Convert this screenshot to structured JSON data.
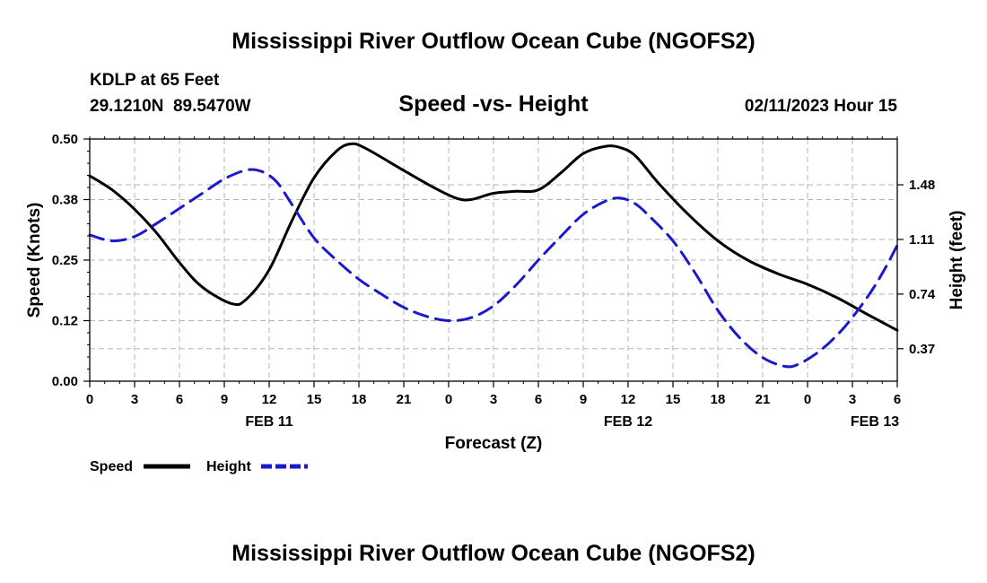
{
  "chart_data": {
    "type": "line",
    "title": "Mississippi River Outflow Ocean Cube (NGOFS2)",
    "footer_title": "Mississippi River Outflow Ocean Cube (NGOFS2)",
    "subtitle": "Speed -vs- Height",
    "station": "KDLP at 65 Feet",
    "location": "29.1210N  89.5470W",
    "timestamp": "02/11/2023 Hour 15",
    "xlabel": "Forecast (Z)",
    "ylabel_left": "Speed (Knots)",
    "ylabel_right": "Height (feet)",
    "x_range_hours": [
      0,
      54
    ],
    "y_left_range": [
      0,
      0.5
    ],
    "y_right_range": [
      0.15,
      1.79
    ],
    "x_ticks": [
      {
        "hour": 0,
        "label": "0"
      },
      {
        "hour": 3,
        "label": "3"
      },
      {
        "hour": 6,
        "label": "6"
      },
      {
        "hour": 9,
        "label": "9"
      },
      {
        "hour": 12,
        "label": "12"
      },
      {
        "hour": 15,
        "label": "15"
      },
      {
        "hour": 18,
        "label": "18"
      },
      {
        "hour": 21,
        "label": "21"
      },
      {
        "hour": 24,
        "label": "0"
      },
      {
        "hour": 27,
        "label": "3"
      },
      {
        "hour": 30,
        "label": "6"
      },
      {
        "hour": 33,
        "label": "9"
      },
      {
        "hour": 36,
        "label": "12"
      },
      {
        "hour": 39,
        "label": "15"
      },
      {
        "hour": 42,
        "label": "18"
      },
      {
        "hour": 45,
        "label": "21"
      },
      {
        "hour": 48,
        "label": "0"
      },
      {
        "hour": 51,
        "label": "3"
      },
      {
        "hour": 54,
        "label": "6"
      }
    ],
    "date_labels": [
      {
        "hour": 12,
        "label": "FEB 11"
      },
      {
        "hour": 36,
        "label": "FEB 12"
      },
      {
        "hour": 52.5,
        "label": "FEB 13"
      }
    ],
    "y_left_ticks": [
      {
        "value": 0.0,
        "label": "0.00"
      },
      {
        "value": 0.125,
        "label": "0.12"
      },
      {
        "value": 0.25,
        "label": "0.25"
      },
      {
        "value": 0.375,
        "label": "0.38"
      },
      {
        "value": 0.5,
        "label": "0.50"
      }
    ],
    "y_right_ticks": [
      {
        "value": 0.37,
        "label": "0.37"
      },
      {
        "value": 0.74,
        "label": "0.74"
      },
      {
        "value": 1.11,
        "label": "1.11"
      },
      {
        "value": 1.48,
        "label": "1.48"
      }
    ],
    "grid": true,
    "legend": {
      "position": "bottom-left",
      "entries": [
        {
          "name": "Speed",
          "color": "#000000",
          "style": "solid"
        },
        {
          "name": "Height",
          "color": "#1a1acc",
          "style": "dashed"
        }
      ]
    },
    "series": [
      {
        "name": "Speed",
        "axis": "left",
        "color": "#000000",
        "style": "solid",
        "points": [
          [
            0,
            0.424
          ],
          [
            1.5,
            0.395
          ],
          [
            3,
            0.355
          ],
          [
            4.5,
            0.305
          ],
          [
            6,
            0.245
          ],
          [
            7.5,
            0.195
          ],
          [
            9.5,
            0.16
          ],
          [
            10.5,
            0.17
          ],
          [
            12,
            0.23
          ],
          [
            13.5,
            0.33
          ],
          [
            15,
            0.42
          ],
          [
            16.5,
            0.475
          ],
          [
            17.5,
            0.49
          ],
          [
            18.5,
            0.48
          ],
          [
            21,
            0.435
          ],
          [
            23,
            0.4
          ],
          [
            24.5,
            0.378
          ],
          [
            25.5,
            0.375
          ],
          [
            27,
            0.388
          ],
          [
            28.5,
            0.392
          ],
          [
            30,
            0.395
          ],
          [
            31.5,
            0.43
          ],
          [
            33,
            0.47
          ],
          [
            34.5,
            0.485
          ],
          [
            35.5,
            0.482
          ],
          [
            36.5,
            0.465
          ],
          [
            38,
            0.41
          ],
          [
            40,
            0.345
          ],
          [
            42,
            0.29
          ],
          [
            44,
            0.25
          ],
          [
            46,
            0.222
          ],
          [
            48,
            0.2
          ],
          [
            50,
            0.172
          ],
          [
            52,
            0.138
          ],
          [
            54,
            0.105
          ]
        ]
      },
      {
        "name": "Height",
        "axis": "right",
        "color": "#1a1acc",
        "style": "dashed",
        "points": [
          [
            0,
            1.14
          ],
          [
            1.5,
            1.1
          ],
          [
            3,
            1.13
          ],
          [
            4.5,
            1.22
          ],
          [
            6,
            1.32
          ],
          [
            7.5,
            1.42
          ],
          [
            9,
            1.52
          ],
          [
            10.5,
            1.58
          ],
          [
            11.5,
            1.57
          ],
          [
            12.5,
            1.5
          ],
          [
            13.5,
            1.35
          ],
          [
            15,
            1.12
          ],
          [
            16.5,
            0.97
          ],
          [
            18,
            0.84
          ],
          [
            19.5,
            0.74
          ],
          [
            21,
            0.65
          ],
          [
            22.5,
            0.59
          ],
          [
            24,
            0.56
          ],
          [
            25.5,
            0.58
          ],
          [
            27,
            0.66
          ],
          [
            28.5,
            0.8
          ],
          [
            30,
            0.97
          ],
          [
            31.5,
            1.13
          ],
          [
            33,
            1.28
          ],
          [
            34.5,
            1.37
          ],
          [
            35.5,
            1.39
          ],
          [
            36.5,
            1.35
          ],
          [
            37.5,
            1.26
          ],
          [
            39,
            1.1
          ],
          [
            40.5,
            0.88
          ],
          [
            42,
            0.63
          ],
          [
            43.5,
            0.44
          ],
          [
            45,
            0.31
          ],
          [
            46.5,
            0.25
          ],
          [
            47.5,
            0.27
          ],
          [
            49,
            0.37
          ],
          [
            50.5,
            0.52
          ],
          [
            52,
            0.72
          ],
          [
            53,
            0.88
          ],
          [
            54,
            1.07
          ]
        ]
      }
    ]
  }
}
